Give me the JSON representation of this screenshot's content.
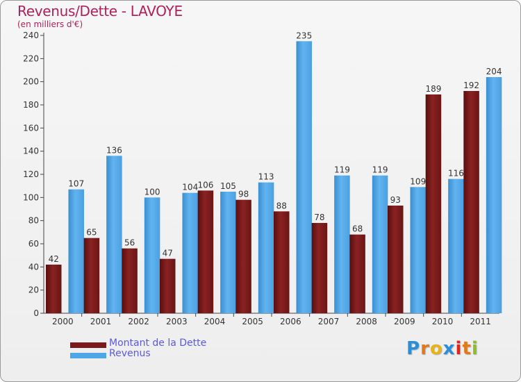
{
  "chart_data": {
    "type": "bar",
    "title": "Revenus/Dette - LAVOYE",
    "subtitle": "(en milliers d'€)",
    "xlabel": "",
    "ylabel": "",
    "ylim": [
      0,
      240
    ],
    "ytick_step": 20,
    "grid": false,
    "legend_position": "bottom-left",
    "categories": [
      "2000",
      "2001",
      "2002",
      "2003",
      "2004",
      "2005",
      "2006",
      "2007",
      "2008",
      "2009",
      "2010",
      "2011"
    ],
    "series": [
      {
        "name": "Montant de la Dette",
        "color": "#7a1a1a",
        "values": [
          42,
          65,
          56,
          47,
          106,
          98,
          88,
          78,
          68,
          93,
          189,
          192
        ]
      },
      {
        "name": "Revenus",
        "color": "#4ea6e6",
        "values": [
          107,
          136,
          100,
          104,
          105,
          113,
          235,
          119,
          119,
          109,
          116,
          204
        ]
      }
    ]
  },
  "brand": {
    "letters": [
      "P",
      "r",
      "o",
      "x",
      "i",
      "t",
      "i"
    ],
    "colors": [
      "#2a8fd8",
      "#e07a1a",
      "#e8b21a",
      "#2a8fd8",
      "#e0261a",
      "#e07a1a",
      "#8bbf2a"
    ]
  }
}
